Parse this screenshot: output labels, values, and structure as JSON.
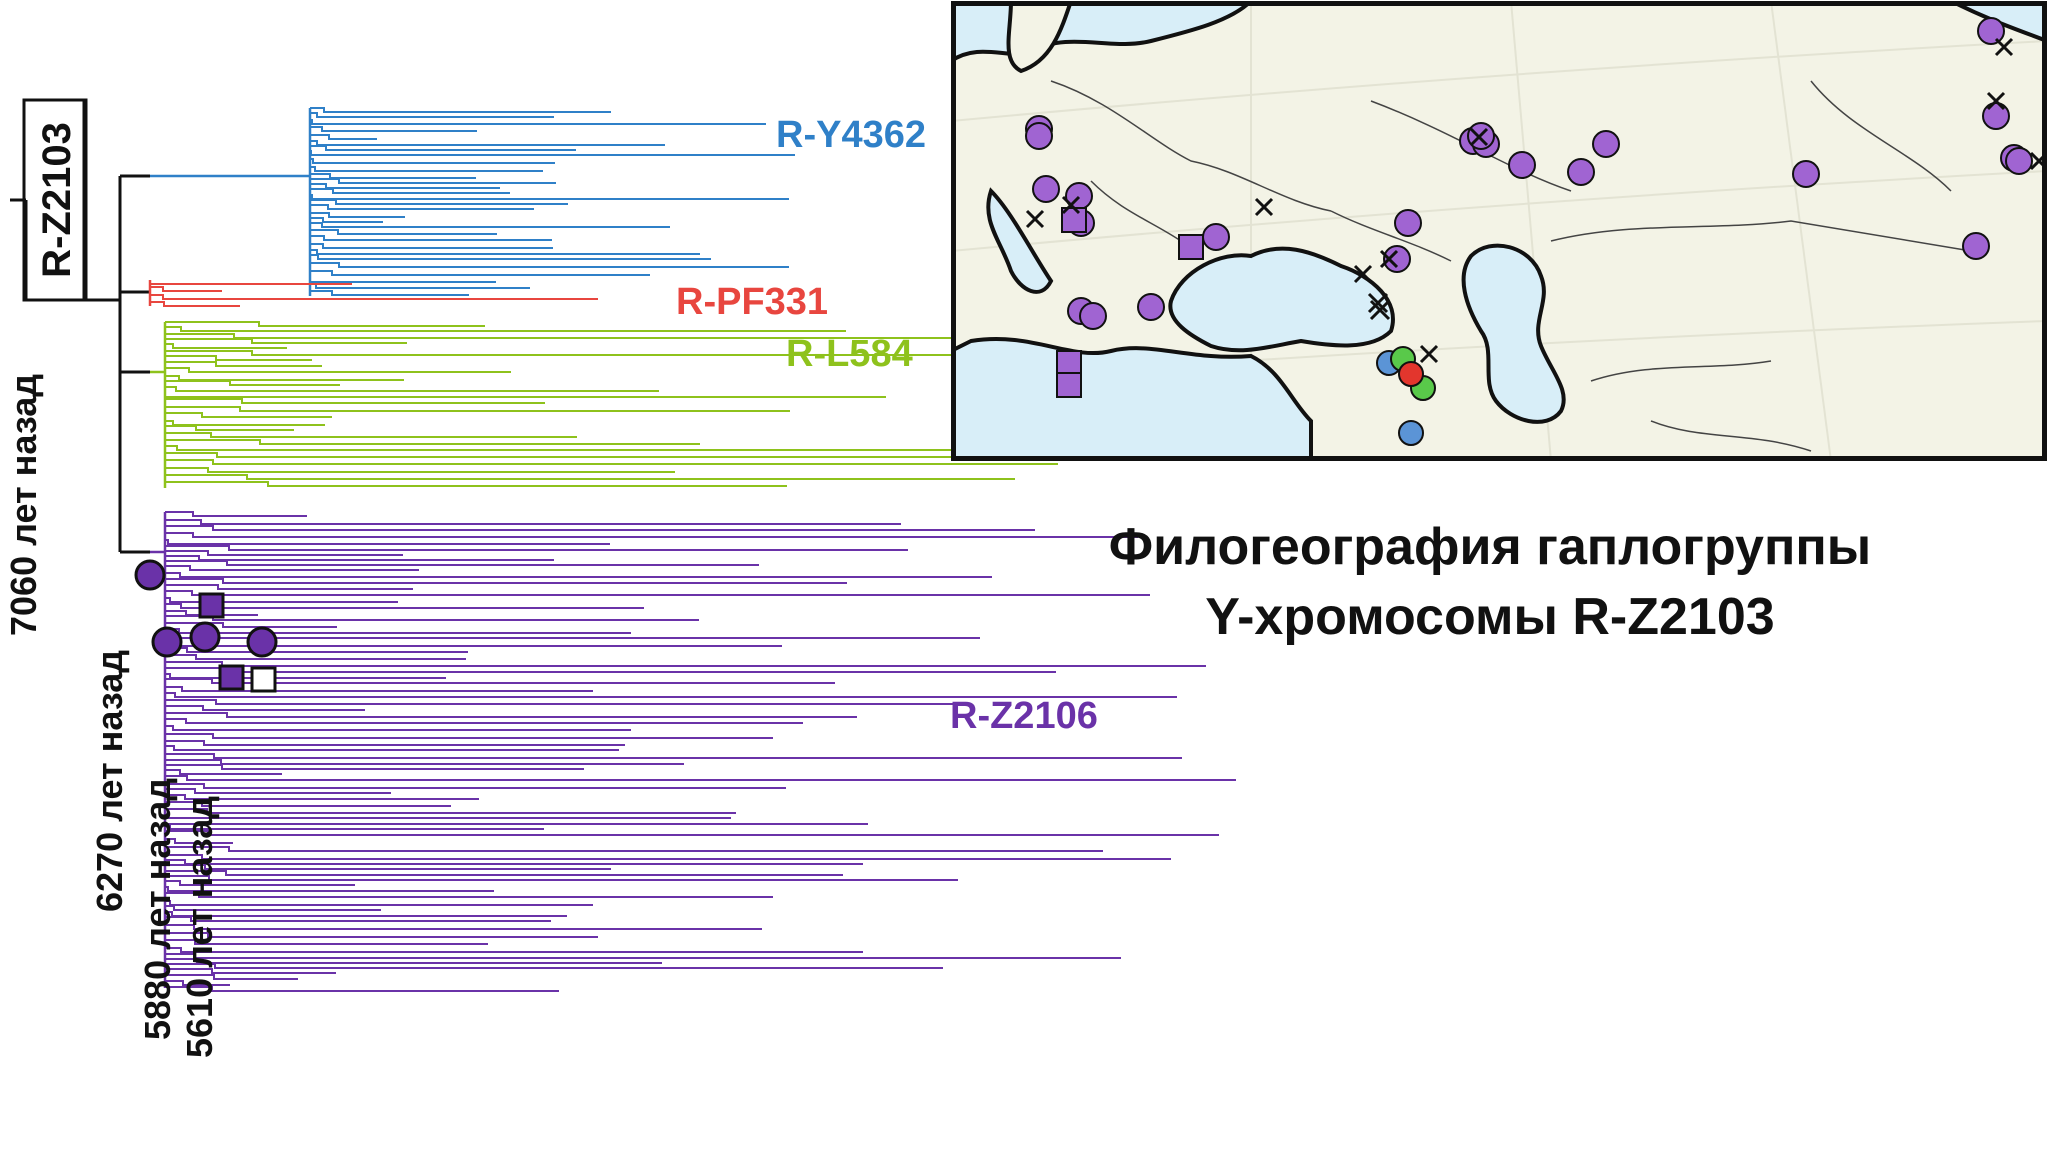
{
  "root_label": "R-Z2103",
  "clades": {
    "y4362": {
      "label": "R-Y4362",
      "color": "#2f80c8"
    },
    "pf331": {
      "label": "R-PF331",
      "color": "#e8463f"
    },
    "l584": {
      "label": "R-L584",
      "color": "#8ec21c"
    },
    "z2106": {
      "label": "R-Z2106",
      "color": "#6a32a8"
    }
  },
  "age_labels": {
    "a7060": "7060 лет назад",
    "a6270": "6270 лет назад",
    "a5880": "5880 лет назад",
    "a5610": "5610 лет назад"
  },
  "title": {
    "line1": "Филогеография гаплогруппы",
    "line2": "Y-хромосомы R-Z2103"
  },
  "colors": {
    "ink": "#111111",
    "sample_purple": "#a064d2",
    "sample_blue": "#5b94d6",
    "sample_green": "#59c94a",
    "sample_red": "#e3362d",
    "sea": "#d8eef8",
    "land": "#f3f3e6"
  }
}
